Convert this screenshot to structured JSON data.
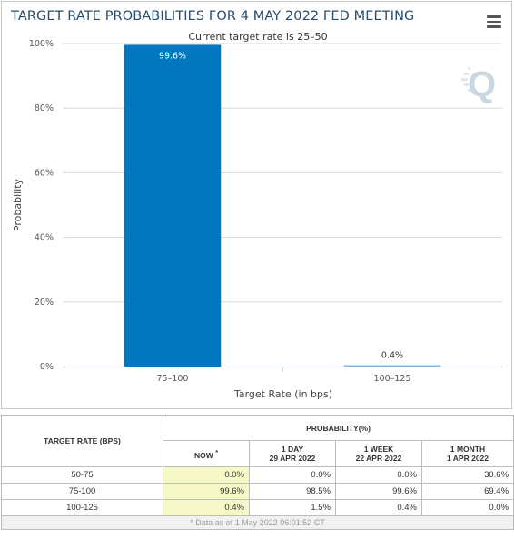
{
  "title": "TARGET RATE PROBABILITIES FOR 4 MAY 2022 FED MEETING",
  "chart_data": {
    "type": "bar",
    "title": "TARGET RATE PROBABILITIES FOR 4 MAY 2022 FED MEETING",
    "subtitle": "Current target rate is 25–50",
    "xlabel": "Target Rate (in bps)",
    "ylabel": "Probability",
    "categories": [
      "75–100",
      "100–125"
    ],
    "values": [
      99.6,
      0.4
    ],
    "data_labels": [
      "99.6%",
      "0.4%"
    ],
    "ylim": [
      0,
      100
    ],
    "yticks": [
      0,
      20,
      40,
      60,
      80,
      100
    ],
    "ytick_labels": [
      "0%",
      "20%",
      "40%",
      "60%",
      "80%",
      "100%"
    ],
    "bar_colors": [
      "#0077bf",
      "#7cb5ec"
    ],
    "grid": "horizontal",
    "legend": "none"
  },
  "watermark_letter": "Q",
  "table": {
    "col_header": "TARGET RATE (BPS)",
    "group_header": "PROBABILITY(%)",
    "subheaders": [
      {
        "line1": "NOW",
        "line2": "",
        "mark": "*"
      },
      {
        "line1": "1 DAY",
        "line2": "29 APR 2022"
      },
      {
        "line1": "1 WEEK",
        "line2": "22 APR 2022"
      },
      {
        "line1": "1 MONTH",
        "line2": "1 APR 2022"
      }
    ],
    "rows": [
      {
        "rate": "50-75",
        "now": "0.0%",
        "day": "0.0%",
        "week": "0.0%",
        "month": "30.6%"
      },
      {
        "rate": "75-100",
        "now": "99.6%",
        "day": "98.5%",
        "week": "99.6%",
        "month": "69.4%"
      },
      {
        "rate": "100-125",
        "now": "0.4%",
        "day": "1.5%",
        "week": "0.4%",
        "month": "0.0%"
      }
    ],
    "footnote": "* Data as of 1 May 2022 06:01:52 CT"
  },
  "icons": {
    "menu": "hamburger-menu-icon"
  },
  "colors": {
    "title": "#274b6d",
    "bar_primary": "#0077bf",
    "bar_secondary": "#7cb5ec",
    "now_column": "#f6f9c6"
  }
}
